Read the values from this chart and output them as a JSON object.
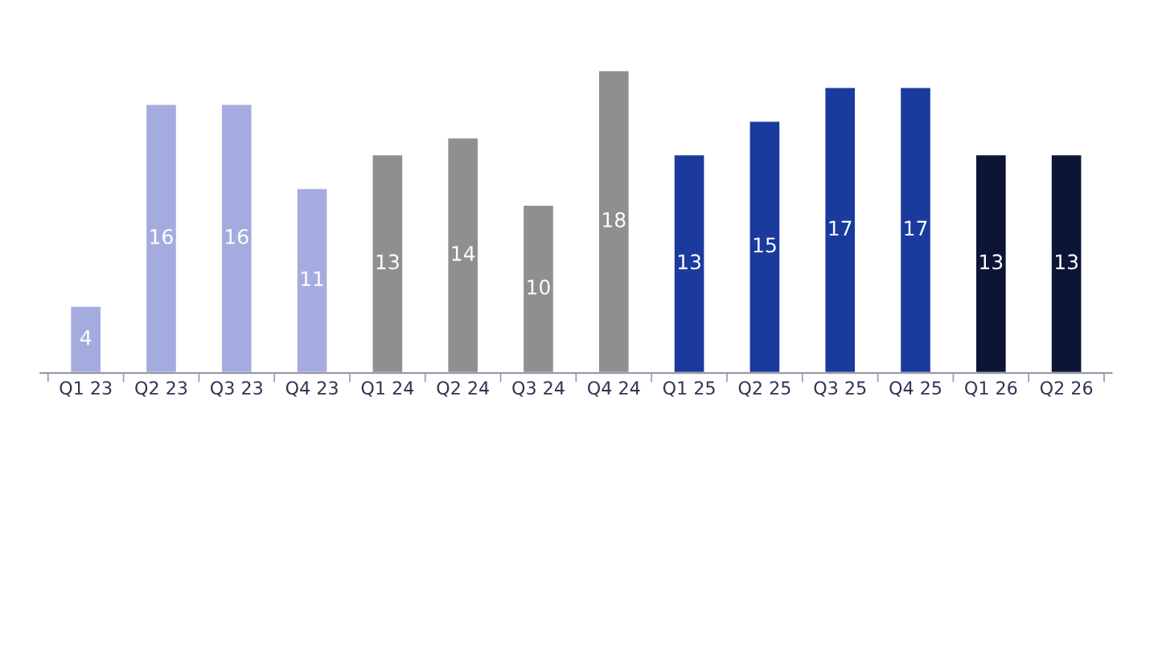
{
  "chart_data": {
    "type": "bar",
    "categories": [
      "Q1 23",
      "Q2 23",
      "Q3 23",
      "Q4 23",
      "Q1 24",
      "Q2 24",
      "Q3 24",
      "Q4 24",
      "Q1 25",
      "Q2 25",
      "Q3 25",
      "Q4 25",
      "Q1 26",
      "Q2 26"
    ],
    "values": [
      4,
      16,
      16,
      11,
      13,
      14,
      10,
      18,
      13,
      15,
      17,
      17,
      13,
      13
    ],
    "colors": [
      "#a4acdf",
      "#a4acdf",
      "#a4acdf",
      "#a4acdf",
      "#8f8f8f",
      "#8f8f8f",
      "#8f8f8f",
      "#8f8f8f",
      "#1b3a9e",
      "#1b3a9e",
      "#1b3a9e",
      "#1b3a9e",
      "#0c1535",
      "#0c1535"
    ],
    "data_labels": true,
    "grid": false,
    "legend": false
  }
}
